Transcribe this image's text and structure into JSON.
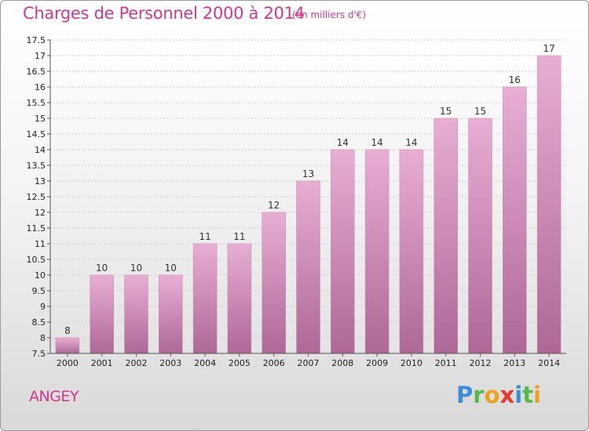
{
  "title": "Charges de Personnel 2000 à 2014",
  "subtitle": "(en milliers d'€)",
  "commune": "ANGEY",
  "logo": {
    "text": "Proxiti"
  },
  "colors": {
    "bar_top": "#e6a9d0",
    "bar_bottom": "#b06b98",
    "title": "#d2378f"
  },
  "chart_data": {
    "type": "bar",
    "categories": [
      "2000",
      "2001",
      "2002",
      "2003",
      "2004",
      "2005",
      "2006",
      "2007",
      "2008",
      "2009",
      "2010",
      "2011",
      "2012",
      "2013",
      "2014"
    ],
    "values": [
      8,
      10,
      10,
      10,
      11,
      11,
      12,
      13,
      14,
      14,
      14,
      15,
      15,
      16,
      17
    ],
    "ylim": [
      7.5,
      17.5
    ],
    "yticks": [
      "7.5",
      "8",
      "8.5",
      "9",
      "9.5",
      "10",
      "10.5",
      "11",
      "11.5",
      "12",
      "12.5",
      "13",
      "13.5",
      "14",
      "14.5",
      "15",
      "15.5",
      "16",
      "16.5",
      "17",
      "17.5"
    ],
    "grid": true,
    "title": "Charges de Personnel 2000 à 2014",
    "xlabel": "",
    "ylabel": ""
  }
}
